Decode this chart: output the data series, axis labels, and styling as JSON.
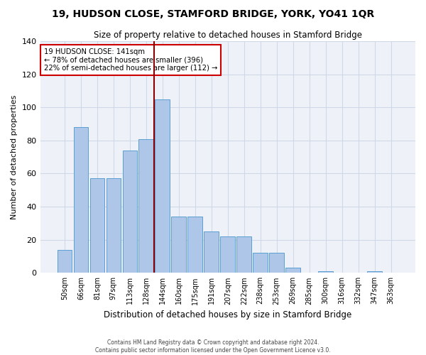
{
  "title": "19, HUDSON CLOSE, STAMFORD BRIDGE, YORK, YO41 1QR",
  "subtitle": "Size of property relative to detached houses in Stamford Bridge",
  "xlabel": "Distribution of detached houses by size in Stamford Bridge",
  "ylabel": "Number of detached properties",
  "bar_labels": [
    "50sqm",
    "66sqm",
    "81sqm",
    "97sqm",
    "113sqm",
    "128sqm",
    "144sqm",
    "160sqm",
    "175sqm",
    "191sqm",
    "207sqm",
    "222sqm",
    "238sqm",
    "253sqm",
    "269sqm",
    "285sqm",
    "300sqm",
    "316sqm",
    "332sqm",
    "347sqm",
    "363sqm"
  ],
  "bar_values": [
    14,
    88,
    57,
    57,
    74,
    81,
    105,
    34,
    34,
    25,
    22,
    22,
    12,
    12,
    3,
    0,
    1,
    0,
    0,
    1,
    0
  ],
  "bar_color": "#aec6e8",
  "bar_edge_color": "#5a9fd4",
  "vline_color": "#8b0000",
  "vline_x_idx": 6,
  "annotation_text": "19 HUDSON CLOSE: 141sqm\n← 78% of detached houses are smaller (396)\n22% of semi-detached houses are larger (112) →",
  "annotation_box_color": "white",
  "annotation_box_edge_color": "#cc0000",
  "ylim": [
    0,
    140
  ],
  "yticks": [
    0,
    20,
    40,
    60,
    80,
    100,
    120,
    140
  ],
  "grid_color": "#d0d8e8",
  "bg_color": "#eef2f8",
  "footer1": "Contains HM Land Registry data © Crown copyright and database right 2024.",
  "footer2": "Contains public sector information licensed under the Open Government Licence v3.0."
}
